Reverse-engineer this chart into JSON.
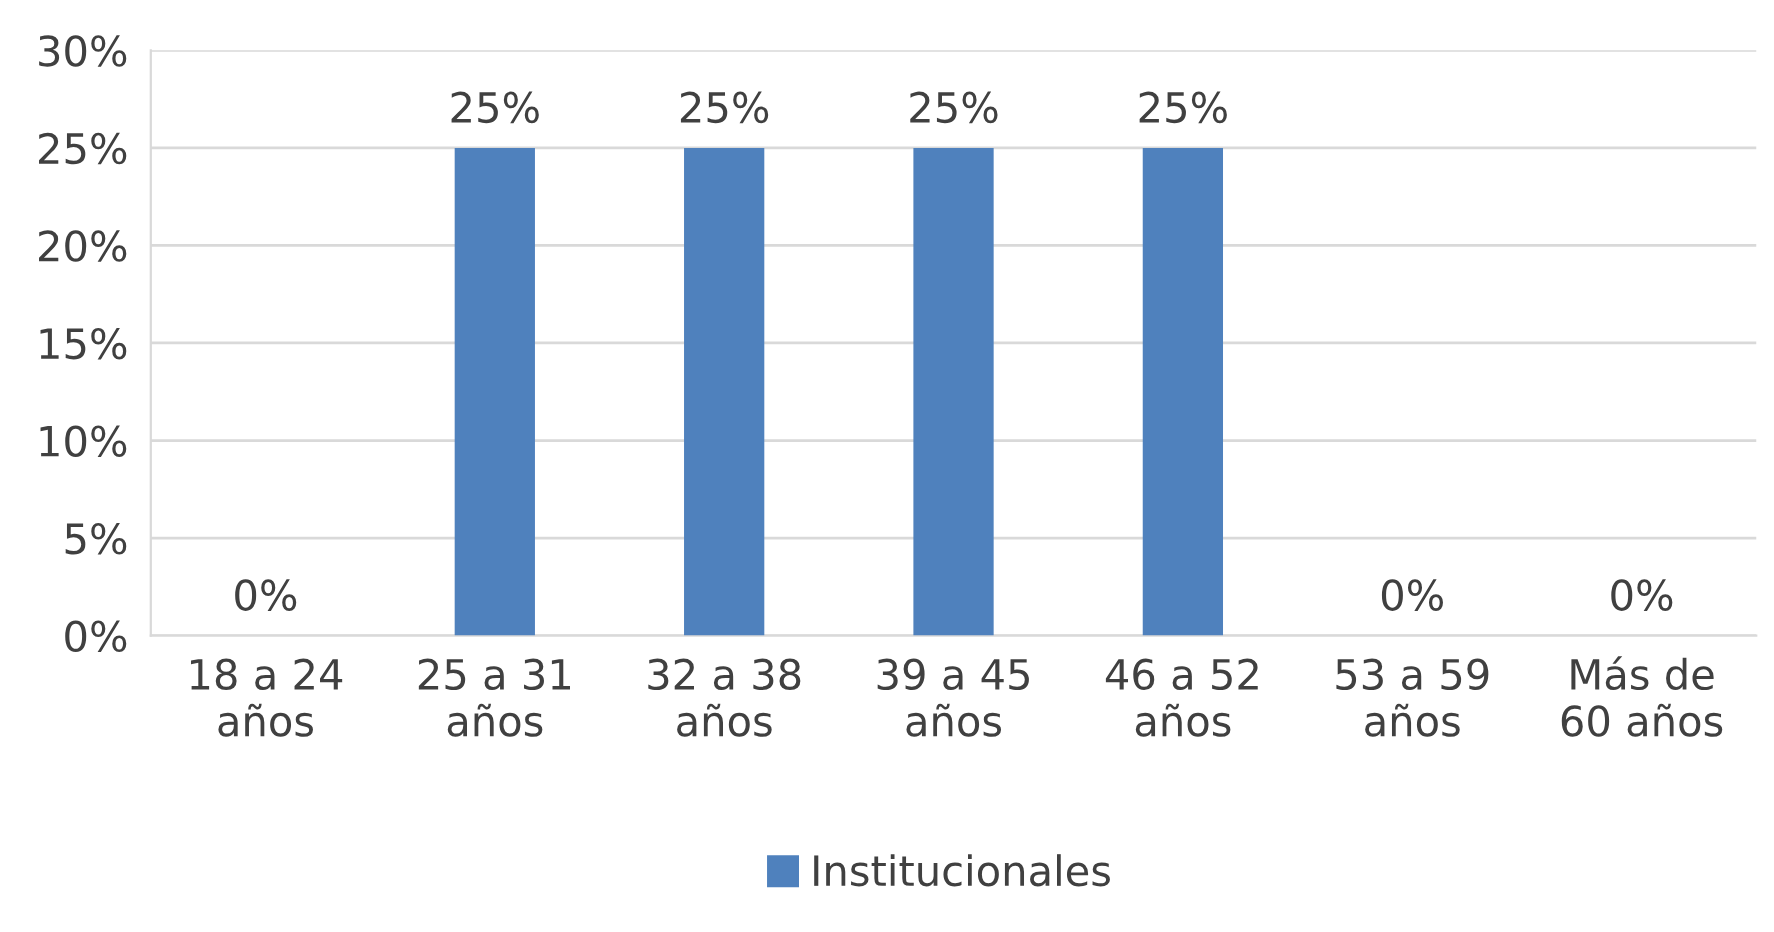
{
  "chart_data": {
    "type": "bar",
    "categories": [
      "18 a 24\naños",
      "25 a 31\naños",
      "32 a 38\naños",
      "39 a 45\naños",
      "46 a 52\naños",
      "53 a 59\naños",
      "Más de\n60 años"
    ],
    "series": [
      {
        "name": "Institucionales",
        "color": "#4f81bd",
        "values": [
          0,
          25,
          25,
          25,
          25,
          0,
          0
        ],
        "value_labels": [
          "0%",
          "25%",
          "25%",
          "25%",
          "25%",
          "0%",
          "0%"
        ]
      }
    ],
    "ylim": [
      0,
      30
    ],
    "yticks": [
      {
        "value": 0,
        "label": "0%"
      },
      {
        "value": 5,
        "label": "5%"
      },
      {
        "value": 10,
        "label": "10%"
      },
      {
        "value": 15,
        "label": "15%"
      },
      {
        "value": 20,
        "label": "20%"
      },
      {
        "value": 25,
        "label": "25%"
      },
      {
        "value": 30,
        "label": "30%"
      }
    ],
    "grid": "y",
    "legend": "bottom"
  }
}
